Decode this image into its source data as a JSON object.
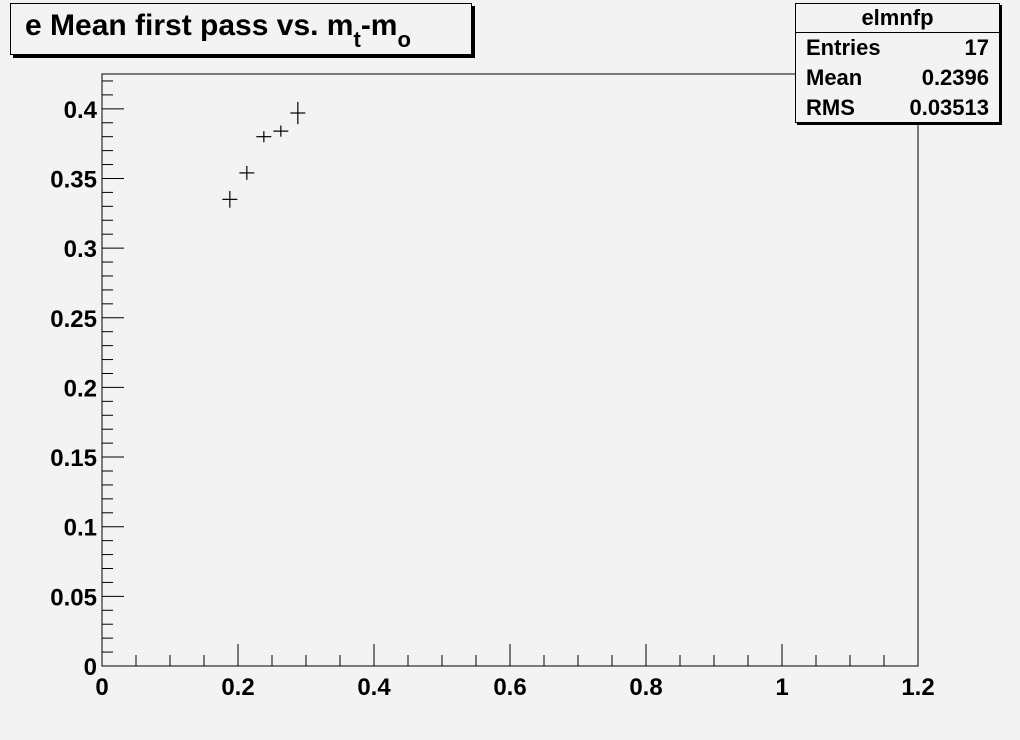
{
  "title": {
    "main": "e Mean first pass vs. m",
    "sub1": "t",
    "mid": "-m",
    "sub2": "o"
  },
  "stats": {
    "name": "elmnfp",
    "rows": [
      {
        "label": "Entries",
        "value": "17"
      },
      {
        "label": "Mean",
        "value": "0.2396"
      },
      {
        "label": "RMS",
        "value": "0.03513"
      }
    ]
  },
  "chart_data": {
    "type": "scatter",
    "title": "e Mean first pass vs. m_t-m_o",
    "xlim": [
      0,
      1.2
    ],
    "ylim": [
      0,
      0.425
    ],
    "x_ticks": [
      0,
      0.2,
      0.4,
      0.6,
      0.8,
      1,
      1.2
    ],
    "x_tick_labels": [
      "0",
      "0.2",
      "0.4",
      "0.6",
      "0.8",
      "1",
      "1.2"
    ],
    "y_ticks": [
      0,
      0.05,
      0.1,
      0.15,
      0.2,
      0.25,
      0.3,
      0.35,
      0.4
    ],
    "y_tick_labels": [
      "0",
      "0.05",
      "0.1",
      "0.15",
      "0.2",
      "0.25",
      "0.3",
      "0.35",
      "0.4"
    ],
    "grid": false,
    "series": [
      {
        "points": [
          {
            "x": 0.188,
            "y": 0.335,
            "xerr": 0.011,
            "yerr": 0.006
          },
          {
            "x": 0.213,
            "y": 0.354,
            "xerr": 0.011,
            "yerr": 0.005
          },
          {
            "x": 0.238,
            "y": 0.38,
            "xerr": 0.011,
            "yerr": 0.004
          },
          {
            "x": 0.263,
            "y": 0.384,
            "xerr": 0.011,
            "yerr": 0.004
          },
          {
            "x": 0.288,
            "y": 0.397,
            "xerr": 0.011,
            "yerr": 0.008
          }
        ]
      }
    ]
  }
}
